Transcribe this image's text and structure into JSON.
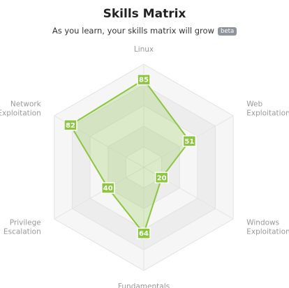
{
  "header": {
    "title": "Skills Matrix",
    "subtitle": "As you learn, your skills matrix will grow",
    "badge": "beta"
  },
  "colors": {
    "accent": "#8cc63f",
    "fill": "rgba(140,198,63,0.25)",
    "ring_light": "#f6f6f6",
    "ring_dark": "#ededed"
  },
  "chart_data": {
    "type": "radar",
    "title": "Skills Matrix",
    "categories": [
      "Linux",
      "Web Exploitation",
      "Windows Exploitation",
      "Fundamentals",
      "Privilege Escalation",
      "Network Exploitation"
    ],
    "labels": [
      [
        "Linux"
      ],
      [
        "Web",
        "Exploitation"
      ],
      [
        "Windows",
        "Exploitation"
      ],
      [
        "Fundamentals"
      ],
      [
        "Privilege",
        "Escalation"
      ],
      [
        "Network",
        "Exploitation"
      ]
    ],
    "values": [
      85,
      51,
      20,
      64,
      40,
      82
    ],
    "range": [
      0,
      100
    ],
    "grid_levels": 5,
    "legend": false
  }
}
